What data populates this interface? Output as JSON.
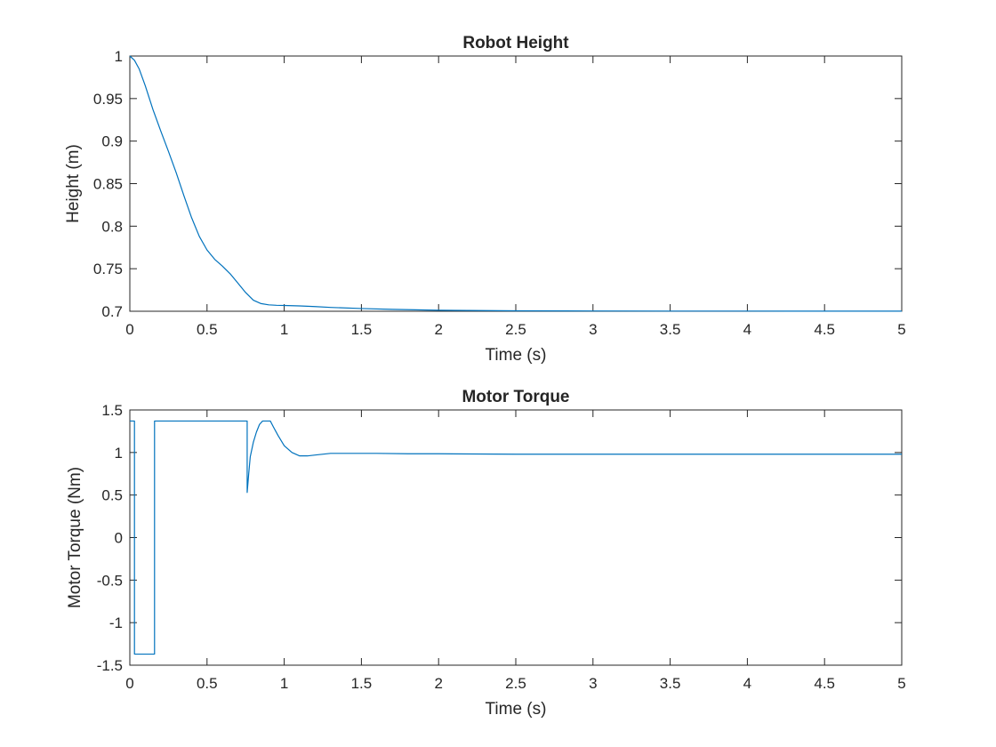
{
  "chart_data": [
    {
      "type": "line",
      "title": "Robot Height",
      "xlabel": "Time (s)",
      "ylabel": "Height (m)",
      "xlim": [
        0,
        5
      ],
      "ylim": [
        0.7,
        1.0
      ],
      "xticks": [
        0,
        0.5,
        1,
        1.5,
        2,
        2.5,
        3,
        3.5,
        4,
        4.5,
        5
      ],
      "yticks": [
        0.7,
        0.75,
        0.8,
        0.85,
        0.9,
        0.95,
        1
      ],
      "xtick_labels": [
        "0",
        "0.5",
        "1",
        "1.5",
        "2",
        "2.5",
        "3",
        "3.5",
        "4",
        "4.5",
        "5"
      ],
      "ytick_labels": [
        "0.7",
        "0.75",
        "0.8",
        "0.85",
        "0.9",
        "0.95",
        "1"
      ],
      "grid": false,
      "series": [
        {
          "color": "#0072BD",
          "x": [
            0,
            0.03,
            0.06,
            0.1,
            0.15,
            0.2,
            0.25,
            0.3,
            0.35,
            0.4,
            0.45,
            0.5,
            0.55,
            0.6,
            0.65,
            0.7,
            0.75,
            0.8,
            0.85,
            0.9,
            0.95,
            1.0,
            1.1,
            1.2,
            1.3,
            1.5,
            1.7,
            2.0,
            2.5,
            3.0,
            3.5,
            4.0,
            4.5,
            5.0
          ],
          "y": [
            1.0,
            0.995,
            0.985,
            0.965,
            0.937,
            0.912,
            0.888,
            0.863,
            0.836,
            0.81,
            0.788,
            0.772,
            0.761,
            0.753,
            0.744,
            0.733,
            0.722,
            0.713,
            0.709,
            0.7075,
            0.707,
            0.7068,
            0.7063,
            0.7055,
            0.7045,
            0.7032,
            0.7022,
            0.7012,
            0.7005,
            0.7003,
            0.7002,
            0.7002,
            0.7001,
            0.7001
          ]
        }
      ]
    },
    {
      "type": "line",
      "title": "Motor Torque",
      "xlabel": "Time (s)",
      "ylabel": "Motor Torque (Nm)",
      "xlim": [
        0,
        5
      ],
      "ylim": [
        -1.5,
        1.5
      ],
      "xticks": [
        0,
        0.5,
        1,
        1.5,
        2,
        2.5,
        3,
        3.5,
        4,
        4.5,
        5
      ],
      "yticks": [
        -1.5,
        -1,
        -0.5,
        0,
        0.5,
        1,
        1.5
      ],
      "xtick_labels": [
        "0",
        "0.5",
        "1",
        "1.5",
        "2",
        "2.5",
        "3",
        "3.5",
        "4",
        "4.5",
        "5"
      ],
      "ytick_labels": [
        "-1.5",
        "-1",
        "-0.5",
        "0",
        "0.5",
        "1",
        "1.5"
      ],
      "grid": false,
      "series": [
        {
          "color": "#0072BD",
          "x": [
            0,
            0.03,
            0.03,
            0.16,
            0.16,
            0.76,
            0.76,
            0.77,
            0.78,
            0.8,
            0.82,
            0.84,
            0.86,
            0.87,
            0.91,
            0.93,
            0.96,
            1.0,
            1.05,
            1.1,
            1.15,
            1.2,
            1.3,
            1.4,
            1.6,
            1.8,
            2.0,
            2.5,
            3.0,
            3.5,
            4.0,
            4.5,
            5.0
          ],
          "y": [
            1.37,
            1.37,
            -1.37,
            -1.37,
            1.37,
            1.37,
            0.53,
            0.75,
            0.95,
            1.12,
            1.24,
            1.33,
            1.37,
            1.37,
            1.37,
            1.3,
            1.2,
            1.08,
            1.0,
            0.96,
            0.96,
            0.97,
            0.99,
            0.99,
            0.99,
            0.985,
            0.985,
            0.98,
            0.98,
            0.98,
            0.98,
            0.98,
            0.98
          ]
        }
      ]
    }
  ]
}
